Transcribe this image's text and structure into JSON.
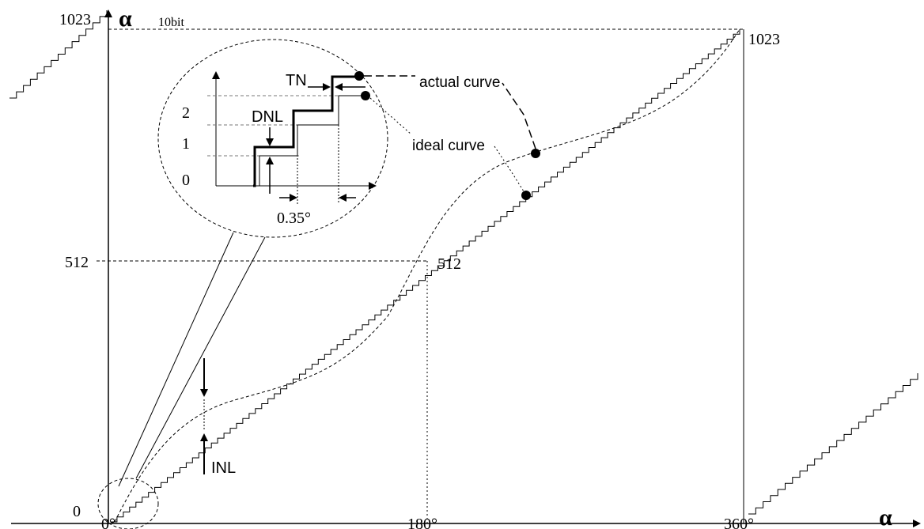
{
  "axis_symbol": "α",
  "labels": {
    "y_top": "1023",
    "y_mid": "512",
    "y_zero": "0",
    "bits": "10bit",
    "right_top": "1023",
    "center_512": "512",
    "x_0": "0°",
    "x_180": "180°",
    "x_360": "360°",
    "inl": "INL",
    "actual_curve": "actual curve",
    "ideal_curve": "ideal curve"
  },
  "inset": {
    "tn": "TN",
    "dnl": "DNL",
    "tick_2": "2",
    "tick_1": "1",
    "tick_0": "0",
    "step_width": "0.35°"
  },
  "colors": {
    "ink": "#000000",
    "dash": "#555555"
  }
}
